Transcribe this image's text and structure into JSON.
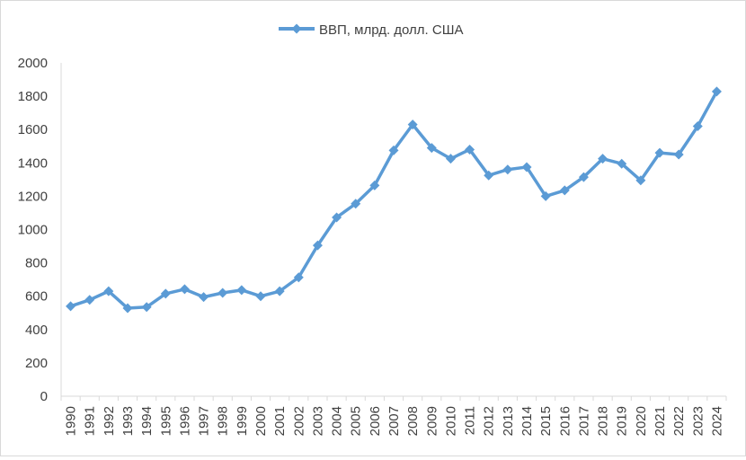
{
  "chart_data": {
    "type": "line",
    "title": "",
    "xlabel": "",
    "ylabel": "",
    "ylim": [
      0,
      2000
    ],
    "yticks": [
      0,
      200,
      400,
      600,
      800,
      1000,
      1200,
      1400,
      1600,
      1800,
      2000
    ],
    "grid": false,
    "legend_position": "top",
    "x": [
      "1990",
      "1991",
      "1992",
      "1993",
      "1994",
      "1995",
      "1996",
      "1997",
      "1998",
      "1999",
      "2000",
      "2001",
      "2002",
      "2003",
      "2004",
      "2005",
      "2006",
      "2007",
      "2008",
      "2009",
      "2010",
      "2011",
      "2012",
      "2013",
      "2014",
      "2015",
      "2016",
      "2017",
      "2018",
      "2019",
      "2020",
      "2021",
      "2022",
      "2023",
      "2024"
    ],
    "series": [
      {
        "name": "ВВП, млрд. долл. США",
        "color": "#5b9bd5",
        "marker": "diamond",
        "values": [
          540,
          578,
          630,
          528,
          535,
          615,
          642,
          595,
          620,
          637,
          600,
          630,
          713,
          905,
          1073,
          1155,
          1265,
          1475,
          1630,
          1490,
          1425,
          1480,
          1325,
          1360,
          1375,
          1200,
          1235,
          1315,
          1425,
          1395,
          1295,
          1460,
          1450,
          1620,
          1828
        ]
      }
    ]
  }
}
